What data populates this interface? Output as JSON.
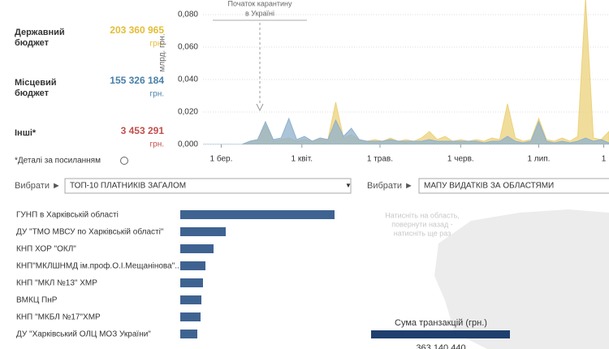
{
  "summary": [
    {
      "label": [
        "Державний",
        "бюджет"
      ],
      "amount": "203 360 965",
      "unit": "грн.",
      "color": "#e3bd35"
    },
    {
      "label": [
        "Місцевий",
        "бюджет"
      ],
      "amount": "155 326 184",
      "unit": "грн.",
      "color": "#4a7fa8"
    },
    {
      "label": [
        "Інші*"
      ],
      "amount": "3 453 291",
      "unit": "грн.",
      "color": "#c0504d"
    }
  ],
  "note": "*Деталі за посиланням",
  "chart_data": {
    "type": "area",
    "y_label": "млрд. грн.",
    "annotation": [
      "Початок карантину",
      "в Україні"
    ],
    "x": [
      9,
      12,
      15,
      18,
      21,
      24,
      27,
      30,
      33,
      36,
      39,
      42,
      45,
      48,
      51,
      54,
      57,
      60,
      63,
      66,
      69,
      72,
      75,
      78,
      81,
      84,
      87,
      90,
      93,
      96,
      99,
      102,
      105,
      108,
      111,
      114,
      117,
      120,
      123,
      126,
      129,
      132,
      135,
      138,
      141,
      144,
      147,
      150,
      153,
      156,
      159,
      162,
      165
    ],
    "xlim": [
      9,
      165
    ],
    "xticks": [
      {
        "value": 16,
        "label": "1 бер."
      },
      {
        "value": 47,
        "label": "1 квіт."
      },
      {
        "value": 77,
        "label": "1 трав."
      },
      {
        "value": 108,
        "label": "1 черв."
      },
      {
        "value": 138,
        "label": "1 лип."
      },
      {
        "value": 163,
        "label": "1"
      }
    ],
    "ylim": [
      0,
      0.085
    ],
    "yticks": [
      {
        "value": 0,
        "label": "0,000"
      },
      {
        "value": 0.02,
        "label": "0,020"
      },
      {
        "value": 0.04,
        "label": "0,040"
      },
      {
        "value": 0.06,
        "label": "0,060"
      },
      {
        "value": 0.08,
        "label": "0,080"
      }
    ],
    "grid": true,
    "series": [
      {
        "name": "Державний бюджет",
        "color": "#ecd27a",
        "values": [
          0,
          0,
          0,
          0,
          0,
          0,
          0.002,
          0.003,
          0.012,
          0.002,
          0.003,
          0.004,
          0.002,
          0.003,
          0.002,
          0.004,
          0.003,
          0.026,
          0.004,
          0.006,
          0.003,
          0.002,
          0.003,
          0.002,
          0.004,
          0.002,
          0.003,
          0.002,
          0.004,
          0.008,
          0.003,
          0.005,
          0.002,
          0.003,
          0.002,
          0.003,
          0.002,
          0.004,
          0.003,
          0.025,
          0.004,
          0.002,
          0.003,
          0.016,
          0.003,
          0.002,
          0.004,
          0.002,
          0.005,
          0.09,
          0.004,
          0.003,
          0.008
        ]
      },
      {
        "name": "Місцевий бюджет",
        "color": "#8fb0cc",
        "values": [
          0,
          0,
          0,
          0,
          0,
          0,
          0.002,
          0.003,
          0.014,
          0.003,
          0.004,
          0.016,
          0.003,
          0.005,
          0.002,
          0.004,
          0.003,
          0.015,
          0.005,
          0.01,
          0.003,
          0.002,
          0.002,
          0.002,
          0.003,
          0.002,
          0.002,
          0.002,
          0.002,
          0.003,
          0.002,
          0.002,
          0.002,
          0.002,
          0.002,
          0.002,
          0.001,
          0.002,
          0.002,
          0.005,
          0.002,
          0.001,
          0.002,
          0.014,
          0.002,
          0.001,
          0.002,
          0.001,
          0.002,
          0.004,
          0.002,
          0.003,
          0.001
        ]
      }
    ]
  },
  "selectors": [
    {
      "prefix": "Вибрати ►",
      "value": "ТОП-10 ПЛАТНИКІВ ЗАГАЛОМ"
    },
    {
      "prefix": "Вибрати ►",
      "value": "МАПУ ВИДАТКІВ ЗА ОБЛАСТЯМИ"
    }
  ],
  "top_payers": {
    "categories": [
      "ГУНП в Харківській області",
      "ДУ \"ТМО МВСУ по Харківській області\"",
      "КНП ХОР \"ОКЛ\"",
      "КНП\"МКЛШНМД ім.проф.О.І.Мещанінова\"..",
      "КНП \"МКЛ №13\" ХМР",
      "ВМКЦ ПнР",
      "КНП \"МКБЛ №17\"ХМР",
      "ДУ \"Харківський ОЛЦ МОЗ України\""
    ],
    "values": [
      190,
      56,
      41,
      31,
      28,
      26,
      25,
      21
    ],
    "color": "#3f6391"
  },
  "map": {
    "hint": [
      "Натисніть на область,",
      "повернути назад -",
      "натисніть ще раз"
    ],
    "legend_title": "Сума транзакцій (грн.)",
    "legend_max": "363 140 440"
  }
}
